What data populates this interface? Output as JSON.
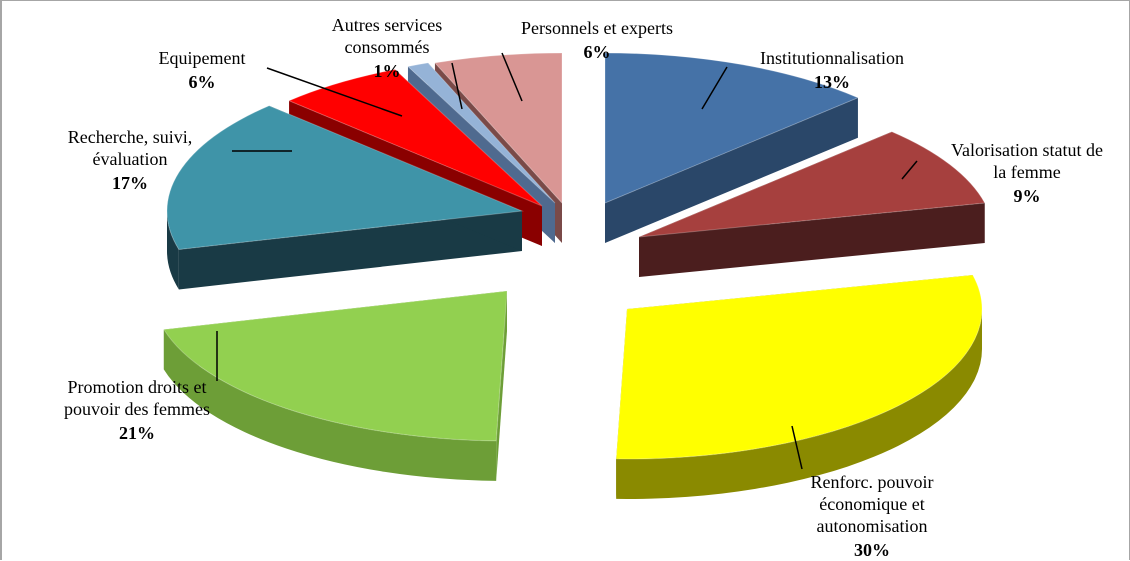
{
  "chart_data": {
    "type": "pie",
    "title": "",
    "slices": [
      {
        "label": [
          "Institutionnalisation"
        ],
        "percent_label": "13%",
        "value": 13,
        "color": "#4572a7",
        "dark": "#2a4769"
      },
      {
        "label": [
          "Valorisation statut de",
          "la femme"
        ],
        "percent_label": "9%",
        "value": 9,
        "color": "#a6403e",
        "dark": "#4b1e1e"
      },
      {
        "label": [
          "Renforc. pouvoir",
          "économique et",
          "autonomisation"
        ],
        "percent_label": "30%",
        "value": 30,
        "color": "#ffff00",
        "dark": "#8a8a00"
      },
      {
        "label": [
          "Promotion droits et",
          "pouvoir des femmes"
        ],
        "percent_label": "21%",
        "value": 21,
        "color": "#92d050",
        "dark": "#6d9e37"
      },
      {
        "label": [
          "Recherche, suivi,",
          "évaluation"
        ],
        "percent_label": "17%",
        "value": 17,
        "color": "#3f94a8",
        "dark": "#193a45"
      },
      {
        "label": [
          "Equipement"
        ],
        "percent_label": "6%",
        "value": 6,
        "color": "#ff0000",
        "dark": "#8a0000"
      },
      {
        "label": [
          "Autres services",
          "consommés"
        ],
        "percent_label": "1%",
        "value": 1,
        "color": "#95b3d7",
        "dark": "#4f6a8f"
      },
      {
        "label": [
          "Personnels et experts"
        ],
        "percent_label": "6%",
        "value": 6,
        "color": "#d99694",
        "dark": "#7a4a48"
      }
    ]
  }
}
